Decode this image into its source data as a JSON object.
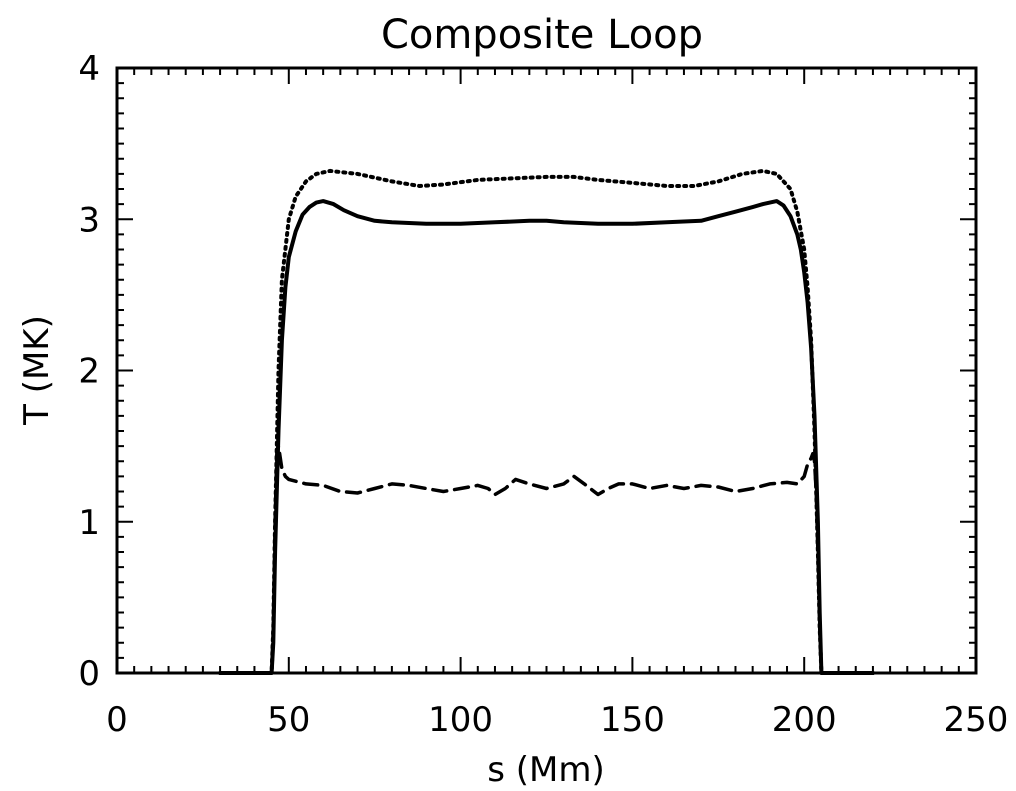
{
  "chart_data": {
    "type": "line",
    "title": "Composite Loop",
    "xlabel": "s (Mm)",
    "ylabel": "T (MK)",
    "xlim": [
      0,
      250
    ],
    "ylim": [
      0,
      4
    ],
    "x_ticks": [
      "0",
      "50",
      "100",
      "150",
      "200",
      "250"
    ],
    "y_ticks": [
      "0",
      "1",
      "2",
      "3",
      "4"
    ],
    "grid": false,
    "legend": "none",
    "series": [
      {
        "style": "dotted",
        "color": "#000000",
        "x": [
          30,
          45,
          45.5,
          46,
          47,
          48,
          50,
          52,
          55,
          58,
          62,
          70,
          80,
          88,
          95,
          105,
          115,
          125,
          133,
          140,
          150,
          160,
          168,
          175,
          182,
          188,
          192,
          196,
          198,
          200,
          201,
          202,
          203,
          204,
          204.5,
          205,
          220
        ],
        "y": [
          0,
          0,
          0.3,
          1.0,
          2.0,
          2.6,
          3.0,
          3.15,
          3.25,
          3.3,
          3.32,
          3.3,
          3.25,
          3.22,
          3.23,
          3.26,
          3.27,
          3.28,
          3.28,
          3.26,
          3.24,
          3.22,
          3.22,
          3.25,
          3.3,
          3.32,
          3.3,
          3.2,
          3.05,
          2.8,
          2.55,
          2.2,
          1.6,
          0.8,
          0.3,
          0,
          0
        ]
      },
      {
        "style": "solid",
        "color": "#000000",
        "x": [
          30,
          45,
          45.5,
          46,
          47,
          48,
          49,
          50,
          52,
          54,
          56,
          58,
          60,
          63,
          66,
          70,
          75,
          80,
          90,
          100,
          110,
          120,
          125,
          130,
          140,
          150,
          160,
          170,
          175,
          180,
          185,
          188,
          190,
          192,
          194,
          196,
          198,
          199,
          200,
          201,
          202,
          203,
          204,
          204.5,
          205,
          220
        ],
        "y": [
          0,
          0,
          0.2,
          0.8,
          1.6,
          2.2,
          2.55,
          2.75,
          2.92,
          3.03,
          3.08,
          3.11,
          3.12,
          3.1,
          3.06,
          3.02,
          2.99,
          2.98,
          2.97,
          2.97,
          2.98,
          2.99,
          2.99,
          2.98,
          2.97,
          2.97,
          2.98,
          2.99,
          3.02,
          3.05,
          3.08,
          3.1,
          3.11,
          3.12,
          3.09,
          3.02,
          2.9,
          2.8,
          2.65,
          2.45,
          2.15,
          1.7,
          1.0,
          0.4,
          0,
          0
        ]
      },
      {
        "style": "dashed",
        "color": "#000000",
        "x": [
          30,
          45,
          45.5,
          46,
          46.5,
          47,
          48,
          49,
          50,
          55,
          60,
          65,
          70,
          75,
          80,
          85,
          90,
          95,
          100,
          105,
          108,
          110,
          113,
          116,
          120,
          125,
          130,
          133,
          136,
          140,
          143,
          146,
          150,
          155,
          160,
          165,
          170,
          175,
          180,
          185,
          190,
          195,
          198,
          200,
          201,
          202,
          202.5,
          203,
          203.5,
          204,
          204.5,
          205,
          220
        ],
        "y": [
          0,
          0,
          0.3,
          1.0,
          1.45,
          1.5,
          1.35,
          1.3,
          1.28,
          1.25,
          1.24,
          1.2,
          1.19,
          1.22,
          1.25,
          1.24,
          1.22,
          1.2,
          1.22,
          1.24,
          1.22,
          1.18,
          1.22,
          1.28,
          1.25,
          1.22,
          1.25,
          1.3,
          1.25,
          1.18,
          1.22,
          1.25,
          1.25,
          1.22,
          1.24,
          1.22,
          1.24,
          1.23,
          1.2,
          1.22,
          1.25,
          1.26,
          1.25,
          1.3,
          1.38,
          1.42,
          1.45,
          1.4,
          1.2,
          0.8,
          0.3,
          0,
          0
        ]
      }
    ]
  }
}
